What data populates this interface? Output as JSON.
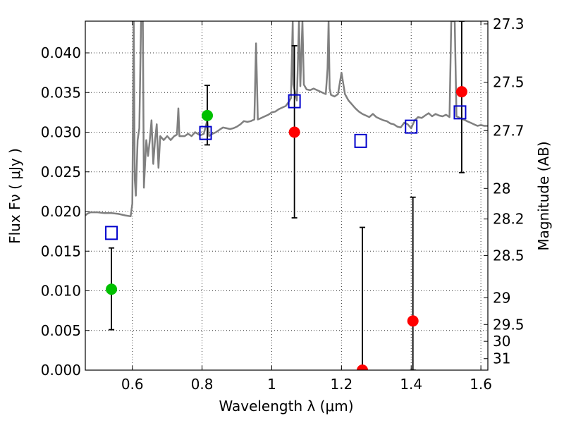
{
  "chart_data": {
    "type": "scatter",
    "xlabel": "Wavelength  λ (μm)",
    "ylabel": "Flux  Fν  ( μJy )",
    "ylabel_right": "Magnitude (AB)",
    "xlim": [
      0.465,
      1.62
    ],
    "ylim": [
      0.0,
      0.044
    ],
    "grid": true,
    "x_ticks": [
      {
        "value": 0.6,
        "label": "0.6"
      },
      {
        "value": 0.8,
        "label": "0.8"
      },
      {
        "value": 1.0,
        "label": "1"
      },
      {
        "value": 1.2,
        "label": "1.2"
      },
      {
        "value": 1.4,
        "label": "1.4"
      },
      {
        "value": 1.6,
        "label": "1.6"
      }
    ],
    "y_ticks": [
      {
        "value": 0.0,
        "label": "0.000"
      },
      {
        "value": 0.005,
        "label": "0.005"
      },
      {
        "value": 0.01,
        "label": "0.010"
      },
      {
        "value": 0.015,
        "label": "0.015"
      },
      {
        "value": 0.02,
        "label": "0.020"
      },
      {
        "value": 0.025,
        "label": "0.025"
      },
      {
        "value": 0.03,
        "label": "0.030"
      },
      {
        "value": 0.035,
        "label": "0.035"
      },
      {
        "value": 0.04,
        "label": "0.040"
      }
    ],
    "mag_ticks": [
      {
        "mag": 27.3,
        "label": "27.3"
      },
      {
        "mag": 27.5,
        "label": "27.5"
      },
      {
        "mag": 27.7,
        "label": "27.7"
      },
      {
        "mag": 28.0,
        "label": "28"
      },
      {
        "mag": 28.2,
        "label": "28.2"
      },
      {
        "mag": 28.5,
        "label": "28.5"
      },
      {
        "mag": 29.0,
        "label": "29"
      },
      {
        "mag": 29.5,
        "label": "29.5"
      },
      {
        "mag": 30.0,
        "label": "30"
      },
      {
        "mag": 31.0,
        "label": "31"
      }
    ],
    "colors": {
      "spectrum": "#808080",
      "green": "#00c000",
      "red": "#ff0000",
      "model": "#0000cc",
      "errorbar": "#000000"
    },
    "spectrum": {
      "name": "model spectrum",
      "points": [
        [
          0.465,
          0.0195
        ],
        [
          0.47,
          0.0197
        ],
        [
          0.48,
          0.0199
        ],
        [
          0.5,
          0.0199
        ],
        [
          0.52,
          0.0198
        ],
        [
          0.54,
          0.0198
        ],
        [
          0.56,
          0.0197
        ],
        [
          0.58,
          0.0195
        ],
        [
          0.595,
          0.0194
        ],
        [
          0.6,
          0.021
        ],
        [
          0.604,
          0.044
        ],
        [
          0.607,
          0.024
        ],
        [
          0.61,
          0.022
        ],
        [
          0.615,
          0.029
        ],
        [
          0.62,
          0.0305
        ],
        [
          0.625,
          0.044
        ],
        [
          0.63,
          0.044
        ],
        [
          0.633,
          0.023
        ],
        [
          0.64,
          0.029
        ],
        [
          0.645,
          0.027
        ],
        [
          0.65,
          0.029
        ],
        [
          0.655,
          0.0315
        ],
        [
          0.66,
          0.026
        ],
        [
          0.665,
          0.029
        ],
        [
          0.67,
          0.031
        ],
        [
          0.675,
          0.0255
        ],
        [
          0.68,
          0.0295
        ],
        [
          0.69,
          0.029
        ],
        [
          0.7,
          0.0295
        ],
        [
          0.71,
          0.029
        ],
        [
          0.72,
          0.0295
        ],
        [
          0.728,
          0.0297
        ],
        [
          0.732,
          0.033
        ],
        [
          0.735,
          0.0295
        ],
        [
          0.75,
          0.0295
        ],
        [
          0.76,
          0.0298
        ],
        [
          0.77,
          0.0295
        ],
        [
          0.78,
          0.03
        ],
        [
          0.795,
          0.0296
        ],
        [
          0.805,
          0.0298
        ],
        [
          0.815,
          0.0315
        ],
        [
          0.82,
          0.0295
        ],
        [
          0.83,
          0.0298
        ],
        [
          0.84,
          0.03
        ],
        [
          0.85,
          0.0303
        ],
        [
          0.86,
          0.0306
        ],
        [
          0.87,
          0.0305
        ],
        [
          0.88,
          0.0304
        ],
        [
          0.89,
          0.0305
        ],
        [
          0.9,
          0.0307
        ],
        [
          0.91,
          0.031
        ],
        [
          0.92,
          0.0314
        ],
        [
          0.93,
          0.0313
        ],
        [
          0.94,
          0.0314
        ],
        [
          0.95,
          0.0316
        ],
        [
          0.955,
          0.0412
        ],
        [
          0.96,
          0.0316
        ],
        [
          0.97,
          0.0318
        ],
        [
          0.98,
          0.032
        ],
        [
          0.99,
          0.0322
        ],
        [
          1.0,
          0.0325
        ],
        [
          1.01,
          0.0326
        ],
        [
          1.02,
          0.0329
        ],
        [
          1.03,
          0.0331
        ],
        [
          1.04,
          0.0333
        ],
        [
          1.05,
          0.0339
        ],
        [
          1.055,
          0.0343
        ],
        [
          1.06,
          0.044
        ],
        [
          1.062,
          0.036
        ],
        [
          1.067,
          0.035
        ],
        [
          1.072,
          0.034
        ],
        [
          1.078,
          0.044
        ],
        [
          1.082,
          0.0358
        ],
        [
          1.088,
          0.044
        ],
        [
          1.092,
          0.036
        ],
        [
          1.1,
          0.0354
        ],
        [
          1.11,
          0.0353
        ],
        [
          1.12,
          0.0355
        ],
        [
          1.13,
          0.0353
        ],
        [
          1.14,
          0.0351
        ],
        [
          1.15,
          0.0349
        ],
        [
          1.155,
          0.0348
        ],
        [
          1.16,
          0.038
        ],
        [
          1.163,
          0.044
        ],
        [
          1.166,
          0.0355
        ],
        [
          1.17,
          0.0347
        ],
        [
          1.18,
          0.0345
        ],
        [
          1.19,
          0.0348
        ],
        [
          1.2,
          0.0375
        ],
        [
          1.21,
          0.0348
        ],
        [
          1.22,
          0.034
        ],
        [
          1.23,
          0.0335
        ],
        [
          1.24,
          0.033
        ],
        [
          1.25,
          0.0326
        ],
        [
          1.26,
          0.0323
        ],
        [
          1.27,
          0.0321
        ],
        [
          1.28,
          0.0319
        ],
        [
          1.29,
          0.0323
        ],
        [
          1.3,
          0.0319
        ],
        [
          1.31,
          0.0317
        ],
        [
          1.32,
          0.0315
        ],
        [
          1.33,
          0.0314
        ],
        [
          1.34,
          0.0311
        ],
        [
          1.35,
          0.031
        ],
        [
          1.36,
          0.0307
        ],
        [
          1.37,
          0.0306
        ],
        [
          1.38,
          0.0312
        ],
        [
          1.39,
          0.031
        ],
        [
          1.4,
          0.0305
        ],
        [
          1.41,
          0.0315
        ],
        [
          1.42,
          0.0319
        ],
        [
          1.43,
          0.0318
        ],
        [
          1.44,
          0.0321
        ],
        [
          1.45,
          0.0324
        ],
        [
          1.46,
          0.032
        ],
        [
          1.47,
          0.0323
        ],
        [
          1.48,
          0.0321
        ],
        [
          1.49,
          0.032
        ],
        [
          1.5,
          0.0322
        ],
        [
          1.51,
          0.0319
        ],
        [
          1.515,
          0.044
        ],
        [
          1.525,
          0.044
        ],
        [
          1.53,
          0.032
        ],
        [
          1.54,
          0.0318
        ],
        [
          1.55,
          0.0316
        ],
        [
          1.56,
          0.0314
        ],
        [
          1.57,
          0.0312
        ],
        [
          1.58,
          0.031
        ],
        [
          1.59,
          0.0308
        ],
        [
          1.6,
          0.0309
        ],
        [
          1.61,
          0.0308
        ],
        [
          1.62,
          0.0308
        ]
      ]
    },
    "observed": [
      {
        "name": "green-point-1",
        "x": 0.54,
        "y": 0.0102,
        "yerr_low": 0.0051,
        "yerr_high": 0.0154,
        "color": "green"
      },
      {
        "name": "green-point-2",
        "x": 0.815,
        "y": 0.0321,
        "yerr_low": 0.0284,
        "yerr_high": 0.0359,
        "color": "green"
      },
      {
        "name": "red-point-1",
        "x": 1.065,
        "y": 0.03,
        "yerr_low": 0.0192,
        "yerr_high": 0.0409,
        "color": "red"
      },
      {
        "name": "red-point-2",
        "x": 1.26,
        "y": 0.0,
        "yerr_low": 0.0,
        "yerr_high": 0.018,
        "color": "red"
      },
      {
        "name": "red-point-3",
        "x": 1.405,
        "y": 0.0062,
        "yerr_low": 0.0,
        "yerr_high": 0.0218,
        "color": "red"
      },
      {
        "name": "red-point-4",
        "x": 1.545,
        "y": 0.0351,
        "yerr_low": 0.0249,
        "yerr_high": 0.044,
        "color": "red"
      }
    ],
    "model_points": [
      {
        "name": "model-square-1",
        "x": 0.54,
        "y": 0.0173
      },
      {
        "name": "model-square-2",
        "x": 0.81,
        "y": 0.0299
      },
      {
        "name": "model-square-3",
        "x": 1.065,
        "y": 0.0339
      },
      {
        "name": "model-square-4",
        "x": 1.255,
        "y": 0.0289
      },
      {
        "name": "model-square-5",
        "x": 1.4,
        "y": 0.0307
      },
      {
        "name": "model-square-6",
        "x": 1.54,
        "y": 0.0325
      }
    ]
  }
}
